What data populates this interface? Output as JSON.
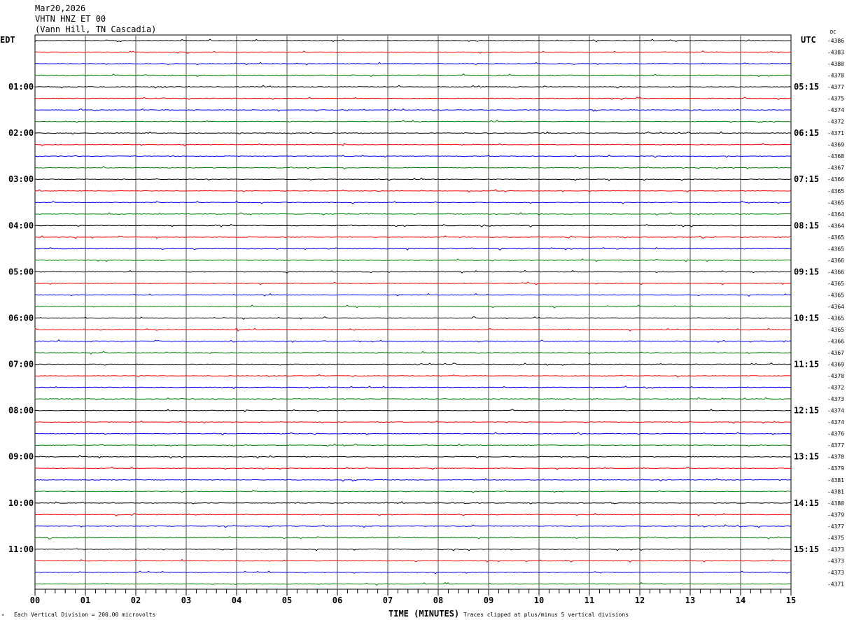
{
  "header": {
    "date": "Mar20,2026",
    "station": "VHTN HNZ ET 00",
    "location": "(Vann Hill, TN Cascadia)"
  },
  "left_zone": "EDT",
  "right_zone": "UTC",
  "dc_label": "DC",
  "footer": {
    "scale_note": "Each Vertical Division =  200.00 microvolts",
    "clip_note": "Traces clipped at plus/minus 5 vertical divisions",
    "mark": "*"
  },
  "chart_data": {
    "type": "line",
    "title": "",
    "xlabel": "TIME (MINUTES)",
    "xlim": [
      0,
      15
    ],
    "x_ticks": [
      "00",
      "01",
      "02",
      "03",
      "04",
      "05",
      "06",
      "07",
      "08",
      "09",
      "10",
      "11",
      "12",
      "13",
      "14",
      "15"
    ],
    "left_labels": [
      "01:00",
      "02:00",
      "03:00",
      "04:00",
      "05:00",
      "06:00",
      "07:00",
      "08:00",
      "09:00",
      "10:00",
      "11:00"
    ],
    "right_labels": [
      "05:15",
      "06:15",
      "07:15",
      "08:15",
      "09:15",
      "10:15",
      "11:15",
      "12:15",
      "13:15",
      "14:15",
      "15:15"
    ],
    "trace_colors": [
      "#000000",
      "#ff0000",
      "#0000ff",
      "#008000"
    ],
    "dc_offsets": [
      -4386,
      -4383,
      -4380,
      -4378,
      -4377,
      -4375,
      -4374,
      -4372,
      -4371,
      -4369,
      -4368,
      -4367,
      -4366,
      -4365,
      -4365,
      -4364,
      -4364,
      -4365,
      -4365,
      -4366,
      -4366,
      -4365,
      -4365,
      -4364,
      -4365,
      -4365,
      -4366,
      -4367,
      -4369,
      -4370,
      -4372,
      -4373,
      -4374,
      -4374,
      -4376,
      -4377,
      -4378,
      -4379,
      -4381,
      -4381,
      -4380,
      -4379,
      -4377,
      -4375,
      -4373,
      -4373,
      -4373,
      -4371
    ]
  }
}
